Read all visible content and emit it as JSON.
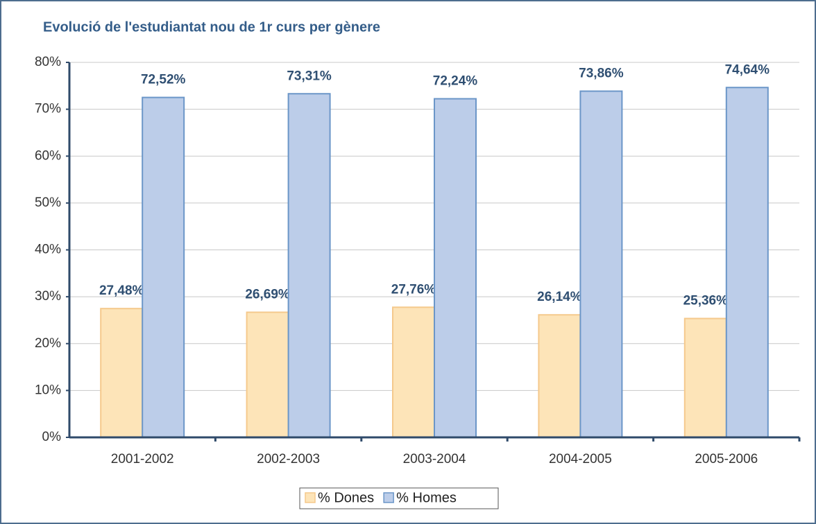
{
  "chart_data": {
    "type": "bar",
    "title": "Evolució de l'estudiantat nou de 1r curs per gènere",
    "categories": [
      "2001-2002",
      "2002-2003",
      "2003-2004",
      "2004-2005",
      "2005-2006"
    ],
    "series": [
      {
        "name": "% Dones",
        "color": "#fde4b8",
        "values": [
          27.48,
          26.69,
          27.76,
          26.14,
          25.36
        ],
        "value_labels": [
          "27,48%",
          "26,69%",
          "27,76%",
          "26,14%",
          "25,36%"
        ]
      },
      {
        "name": "% Homes",
        "color": "#bccde9",
        "values": [
          72.52,
          73.31,
          72.24,
          73.86,
          74.64
        ],
        "value_labels": [
          "72,52%",
          "73,31%",
          "72,24%",
          "73,86%",
          "74,64%"
        ]
      }
    ],
    "ylim": [
      0,
      80
    ],
    "yticks": [
      {
        "value": 0,
        "label": "0%"
      },
      {
        "value": 10,
        "label": "10%"
      },
      {
        "value": 20,
        "label": "20%"
      },
      {
        "value": 30,
        "label": "30%"
      },
      {
        "value": 40,
        "label": "40%"
      },
      {
        "value": 50,
        "label": "50%"
      },
      {
        "value": 60,
        "label": "60%"
      },
      {
        "value": 70,
        "label": "70%"
      },
      {
        "value": 80,
        "label": "80%"
      }
    ],
    "grid": true,
    "legend": "bottom"
  }
}
